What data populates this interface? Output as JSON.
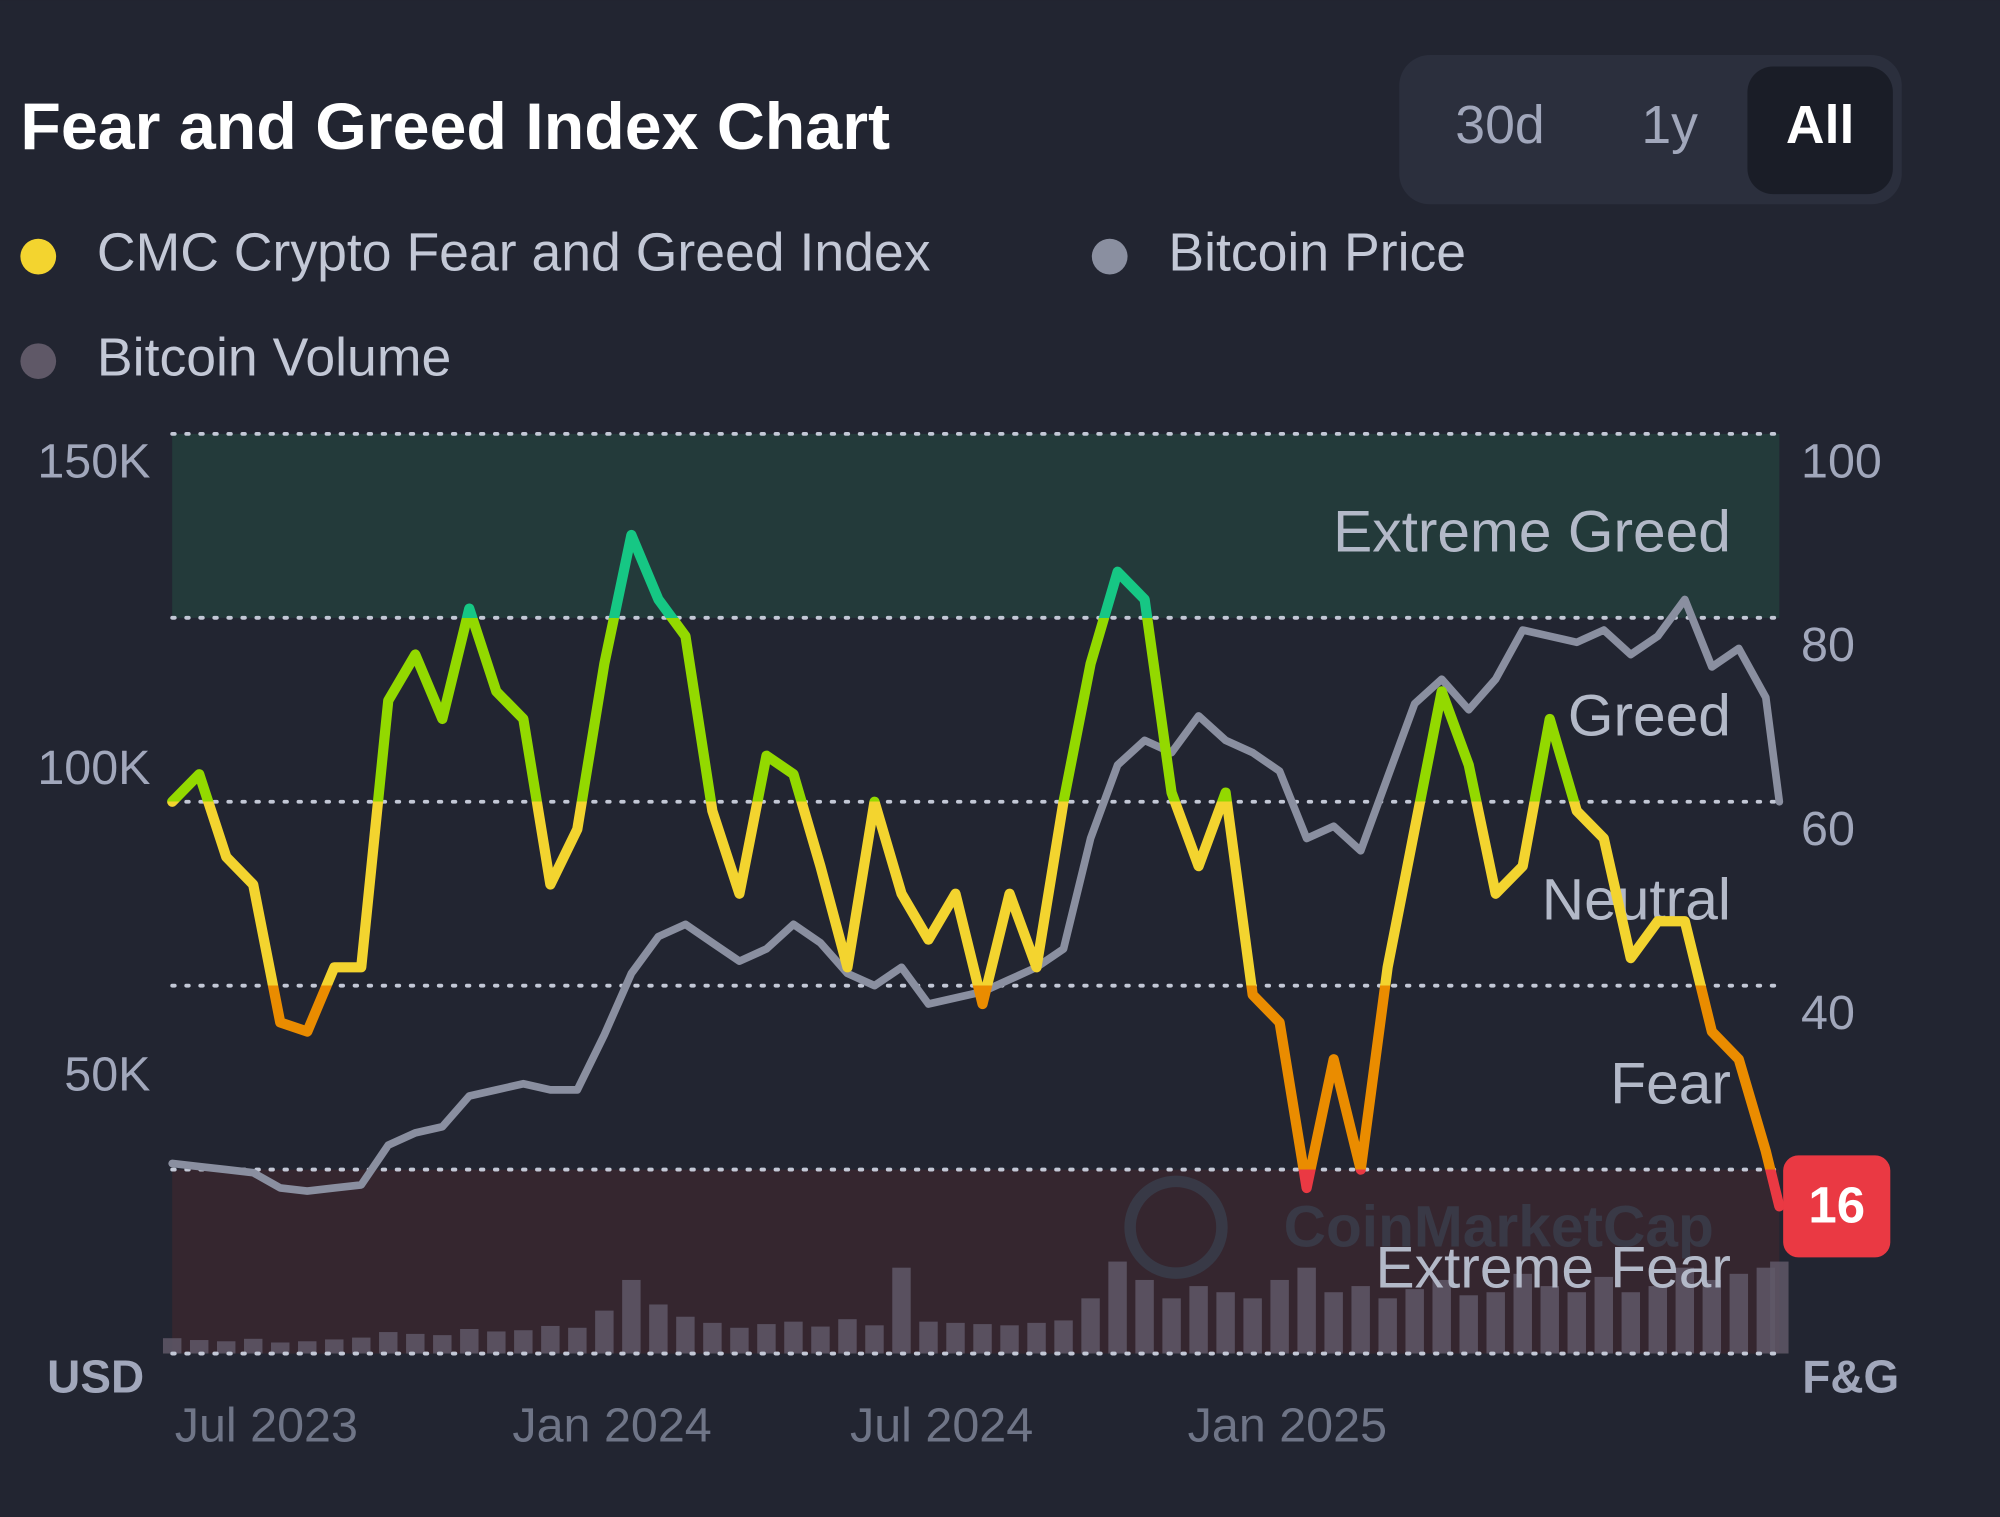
{
  "controls": {
    "ranges": [
      "30d",
      "1y",
      "All"
    ],
    "selected": 2
  },
  "chart_data": {
    "type": "line",
    "title": "Fear and Greed Index Chart",
    "ylabel": "USD",
    "y2label": "F&G",
    "watermark": "CoinMarketCap",
    "x": [
      2023.5,
      2023.54,
      2023.58,
      2023.62,
      2023.66,
      2023.7,
      2023.74,
      2023.78,
      2023.82,
      2023.86,
      2023.9,
      2023.94,
      2023.98,
      2024.02,
      2024.06,
      2024.1,
      2024.14,
      2024.18,
      2024.22,
      2024.26,
      2024.3,
      2024.34,
      2024.38,
      2024.42,
      2024.46,
      2024.5,
      2024.54,
      2024.58,
      2024.62,
      2024.66,
      2024.7,
      2024.74,
      2024.78,
      2024.82,
      2024.86,
      2024.9,
      2024.94,
      2024.98,
      2025.02,
      2025.06,
      2025.1,
      2025.14,
      2025.18,
      2025.22,
      2025.26,
      2025.3,
      2025.34,
      2025.38,
      2025.42,
      2025.46,
      2025.5,
      2025.54,
      2025.58,
      2025.62,
      2025.66,
      2025.7,
      2025.74,
      2025.78,
      2025.82,
      2025.86,
      2025.88
    ],
    "xlim": [
      2023.5,
      2025.88
    ],
    "xticks": [
      {
        "value": 2023.5,
        "label": "Jul 2023"
      },
      {
        "value": 2024.0,
        "label": "Jan 2024"
      },
      {
        "value": 2024.5,
        "label": "Jul 2024"
      },
      {
        "value": 2025.0,
        "label": "Jan 2025"
      }
    ],
    "ylim": [
      0,
      150000
    ],
    "yticks": [
      {
        "value": 50000,
        "label": "50K"
      },
      {
        "value": 100000,
        "label": "100K"
      },
      {
        "value": 150000,
        "label": "150K"
      }
    ],
    "y2lim": [
      0,
      100
    ],
    "y2ticks": [
      40,
      60,
      80,
      100
    ],
    "zones": [
      {
        "label": "Extreme Greed",
        "from": 80,
        "to": 100,
        "color": "#16c784",
        "band": "#233a3a"
      },
      {
        "label": "Greed",
        "from": 60,
        "to": 80,
        "color": "#93d900"
      },
      {
        "label": "Neutral",
        "from": 40,
        "to": 60,
        "color": "#f3d42f"
      },
      {
        "label": "Fear",
        "from": 20,
        "to": 40,
        "color": "#ea8c00"
      },
      {
        "label": "Extreme Fear",
        "from": 0,
        "to": 20,
        "color": "#ea3943",
        "band": "#35262f"
      }
    ],
    "series": [
      {
        "name": "CMC Crypto Fear and Greed Index",
        "color": "#f3d42f",
        "axis": "y2",
        "kind": "line",
        "values": [
          60,
          63,
          54,
          51,
          36,
          35,
          42,
          42,
          71,
          76,
          69,
          81,
          72,
          69,
          51,
          57,
          75,
          89,
          82,
          78,
          59,
          50,
          65,
          63,
          53,
          42,
          60,
          50,
          45,
          50,
          38,
          50,
          42,
          60,
          75,
          85,
          82,
          61,
          53,
          61,
          39,
          36,
          18,
          32,
          20,
          42,
          57,
          72,
          64,
          50,
          53,
          69,
          59,
          56,
          43,
          47,
          47,
          35,
          32,
          22,
          16
        ]
      },
      {
        "name": "Bitcoin Price",
        "color": "#8a8fa0",
        "axis": "y",
        "kind": "line",
        "values": [
          31000,
          30500,
          30000,
          29500,
          27000,
          26500,
          27000,
          27500,
          34000,
          36000,
          37000,
          42000,
          43000,
          44000,
          43000,
          43000,
          52000,
          62000,
          68000,
          70000,
          67000,
          64000,
          66000,
          70000,
          67000,
          62000,
          60000,
          63000,
          57000,
          58000,
          59000,
          61000,
          63000,
          66000,
          84000,
          96000,
          100000,
          98000,
          104000,
          100000,
          98000,
          95000,
          84000,
          86000,
          82000,
          94000,
          106000,
          110000,
          105000,
          110000,
          118000,
          117000,
          116000,
          118000,
          114000,
          117000,
          123000,
          112000,
          115000,
          107000,
          90000
        ]
      },
      {
        "name": "Bitcoin Volume",
        "color": "#5f5867",
        "axis": "y",
        "kind": "bar",
        "values": [
          2500,
          2200,
          2000,
          2400,
          1800,
          2000,
          2300,
          2600,
          3500,
          3200,
          3000,
          4000,
          3600,
          3800,
          4500,
          4200,
          7000,
          12000,
          8000,
          6000,
          5000,
          4200,
          4800,
          5200,
          4400,
          5600,
          4600,
          14000,
          5200,
          5000,
          4800,
          4600,
          5000,
          5400,
          9000,
          15000,
          12000,
          9000,
          11000,
          10000,
          9000,
          12000,
          14000,
          10000,
          11000,
          9000,
          10500,
          12000,
          9500,
          10000,
          13000,
          11000,
          10000,
          12500,
          10000,
          11000,
          14000,
          12000,
          13000,
          14000,
          15000
        ]
      }
    ]
  }
}
